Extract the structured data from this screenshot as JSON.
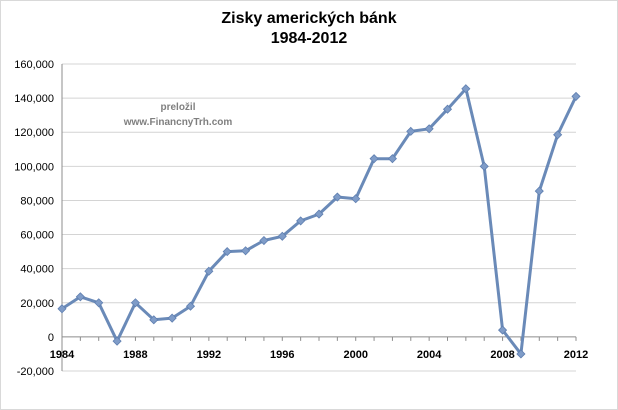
{
  "chart_data": {
    "type": "line",
    "title": "Zisky amerických bánk",
    "subtitle": "1984-2012",
    "annotation": [
      "preložil",
      "www.FinancnyTrh.com"
    ],
    "x": [
      1984,
      1985,
      1986,
      1987,
      1988,
      1989,
      1990,
      1991,
      1992,
      1993,
      1994,
      1995,
      1996,
      1997,
      1998,
      1999,
      2000,
      2001,
      2002,
      2003,
      2004,
      2005,
      2006,
      2007,
      2008,
      2009,
      2010,
      2011,
      2012
    ],
    "series": [
      {
        "values": [
          16500,
          23500,
          20000,
          -2500,
          20000,
          10000,
          11000,
          18000,
          38500,
          50000,
          50500,
          56500,
          59000,
          68000,
          72000,
          82000,
          81000,
          104500,
          104500,
          120500,
          122000,
          133500,
          145500,
          100000,
          4000,
          -10000,
          85500,
          118500,
          141000
        ],
        "color": "#7f9cc8",
        "line_color": "#6a8ab8"
      }
    ],
    "ylim": [
      -20000,
      160000
    ],
    "y_ticks": [
      -20000,
      0,
      20000,
      40000,
      60000,
      80000,
      100000,
      120000,
      140000,
      160000
    ],
    "y_tick_labels": [
      "-20,000",
      "0",
      "20,000",
      "40,000",
      "60,000",
      "80,000",
      "100,000",
      "120,000",
      "140,000",
      "160,000"
    ],
    "x_tick_labels": [
      "1984",
      "1988",
      "1992",
      "1996",
      "2000",
      "2004",
      "2008",
      "2012"
    ],
    "grid": true
  }
}
